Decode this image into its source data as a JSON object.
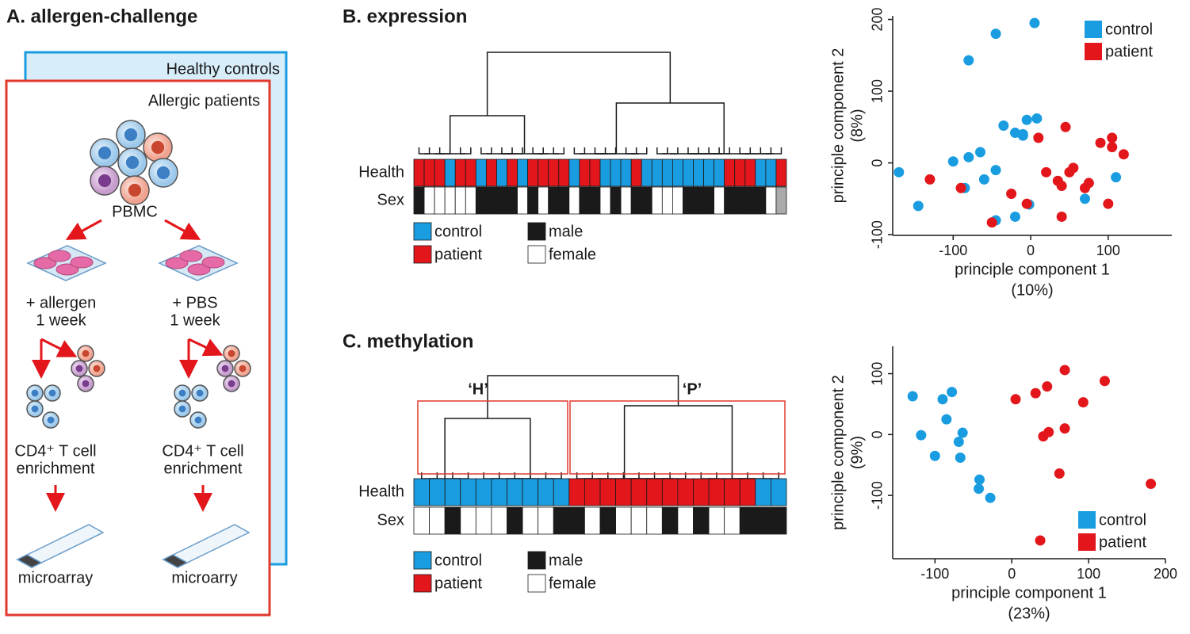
{
  "panel_a": {
    "title": "A. allergen-challenge",
    "outer_box": "Healthy controls",
    "inner_box": "Allergic patients",
    "pbmc": "PBMC",
    "left": {
      "treatment": "+ allergen",
      "duration": "1 week",
      "step": "CD4⁺ T cell",
      "step2": "enrichment",
      "assay": "microarray"
    },
    "right": {
      "treatment": "+ PBS",
      "duration": "1 week",
      "step": "CD4⁺ T cell",
      "step2": "enrichment",
      "assay": "microarry"
    }
  },
  "panel_b": {
    "title": "B. expression",
    "health_label": "Health",
    "sex_label": "Sex",
    "legend": [
      {
        "label": "control",
        "color": "#1a9de0"
      },
      {
        "label": "patient",
        "color": "#e2161b"
      },
      {
        "label": "male",
        "color": "#1a1a1a"
      },
      {
        "label": "female",
        "color": "#ffffff"
      }
    ],
    "health": [
      "patient",
      "patient",
      "patient",
      "control",
      "patient",
      "patient",
      "control",
      "patient",
      "control",
      "patient",
      "control",
      "patient",
      "patient",
      "patient",
      "patient",
      "control",
      "patient",
      "patient",
      "control",
      "control",
      "control",
      "patient",
      "control",
      "control",
      "control",
      "control",
      "control",
      "control",
      "control",
      "control",
      "patient",
      "patient",
      "patient",
      "control",
      "control",
      "patient"
    ],
    "sex": [
      "male",
      "female",
      "female",
      "female",
      "female",
      "female",
      "male",
      "male",
      "male",
      "male",
      "female",
      "male",
      "female",
      "male",
      "male",
      "female",
      "male",
      "male",
      "female",
      "male",
      "female",
      "male",
      "male",
      "female",
      "female",
      "female",
      "male",
      "male",
      "male",
      "female",
      "male",
      "male",
      "male",
      "male",
      "female",
      null
    ]
  },
  "panel_c": {
    "title": "C. methylation",
    "health_label": "Health",
    "sex_label": "Sex",
    "cluster_h": "‘H’",
    "cluster_p": "‘P’",
    "legend": [
      {
        "label": "control",
        "color": "#1a9de0"
      },
      {
        "label": "patient",
        "color": "#e2161b"
      },
      {
        "label": "male",
        "color": "#1a1a1a"
      },
      {
        "label": "female",
        "color": "#ffffff"
      }
    ],
    "health": [
      "control",
      "control",
      "control",
      "control",
      "control",
      "control",
      "control",
      "control",
      "control",
      "control",
      "patient",
      "patient",
      "patient",
      "patient",
      "patient",
      "patient",
      "patient",
      "patient",
      "patient",
      "patient",
      "patient",
      "patient",
      "control",
      "control"
    ],
    "sex": [
      "female",
      "female",
      "male",
      "female",
      "female",
      "female",
      "male",
      "female",
      "female",
      "male",
      "male",
      "female",
      "male",
      "female",
      "female",
      "female",
      "male",
      "female",
      "male",
      "female",
      "female",
      "male",
      "male",
      "male"
    ]
  },
  "chart_data": [
    {
      "type": "scatter",
      "x_label": "principle component 1",
      "x_label_note": "(10%)",
      "y_label": "principle component 2",
      "y_label_note": "(8%)",
      "xlim": [
        -178,
        182
      ],
      "ylim": [
        -101,
        205
      ],
      "xticks": [
        -100,
        0,
        100
      ],
      "yticks": [
        -100,
        0,
        100,
        200
      ],
      "legend": "upper right",
      "series": [
        {
          "name": "control",
          "color": "#1a9de0",
          "x": [
            -45,
            5,
            -80,
            -170,
            -145,
            -100,
            -85,
            -80,
            -65,
            -60,
            -45,
            -45,
            -20,
            -35,
            -20,
            -10,
            -5,
            8,
            -2,
            110,
            70,
            -10
          ],
          "y": [
            180,
            195,
            143,
            -13,
            -60,
            2,
            -35,
            8,
            15,
            -23,
            -10,
            -80,
            -75,
            52,
            42,
            38,
            60,
            62,
            -58,
            -20,
            -50,
            40
          ]
        },
        {
          "name": "patient",
          "color": "#e2161b",
          "x": [
            -130,
            -90,
            -25,
            -5,
            10,
            20,
            45,
            35,
            40,
            50,
            55,
            75,
            70,
            40,
            100,
            90,
            105,
            105,
            120,
            -50
          ],
          "y": [
            -23,
            -35,
            -43,
            -57,
            35,
            -13,
            50,
            -25,
            -32,
            -13,
            -7,
            -28,
            -35,
            -75,
            -57,
            28,
            35,
            22,
            12,
            -83
          ]
        }
      ]
    },
    {
      "type": "scatter",
      "x_label": "principle component 1",
      "x_label_note": "(23%)",
      "y_label": "principle component 2",
      "y_label_note": "(9%)",
      "xlim": [
        -155,
        200
      ],
      "ylim": [
        -204,
        145
      ],
      "xticks": [
        -100,
        0,
        100,
        200
      ],
      "yticks": [
        -100,
        0,
        100
      ],
      "legend": "lower right",
      "series": [
        {
          "name": "control",
          "color": "#1a9de0",
          "x": [
            -129,
            -118,
            -100,
            -90,
            -78,
            -85,
            -69,
            -64,
            -67,
            -42,
            -43,
            -28
          ],
          "y": [
            63,
            -1,
            -35,
            58,
            70,
            25,
            -12,
            3,
            -38,
            -74,
            -89,
            -104
          ]
        },
        {
          "name": "patient",
          "color": "#e2161b",
          "x": [
            5,
            31,
            46,
            69,
            93,
            121,
            41,
            48,
            69,
            62,
            37,
            181
          ],
          "y": [
            58,
            68,
            79,
            106,
            53,
            88,
            -3,
            4,
            10,
            -64,
            -174,
            -81
          ]
        }
      ]
    }
  ]
}
